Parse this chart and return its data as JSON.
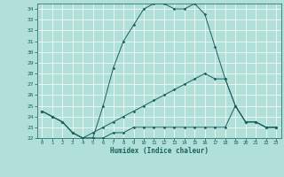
{
  "xlabel": "Humidex (Indice chaleur)",
  "bg_color": "#b0e0d8",
  "line_color": "#1a6060",
  "grid_color": "#ffffff",
  "ylim": [
    22,
    34.5
  ],
  "xlim": [
    -0.5,
    23.5
  ],
  "yticks": [
    22,
    23,
    24,
    25,
    26,
    27,
    28,
    29,
    30,
    31,
    32,
    33,
    34
  ],
  "xticks": [
    0,
    1,
    2,
    3,
    4,
    5,
    6,
    7,
    8,
    9,
    10,
    11,
    12,
    13,
    14,
    15,
    16,
    17,
    18,
    19,
    20,
    21,
    22,
    23
  ],
  "line1_x": [
    0,
    1,
    2,
    3,
    4,
    5,
    6,
    7,
    8,
    9,
    10,
    11,
    12,
    13,
    14,
    15,
    16,
    17,
    18,
    19,
    20,
    21,
    22,
    23
  ],
  "line1_y": [
    24.5,
    24.0,
    23.5,
    22.5,
    22.0,
    22.0,
    25.0,
    28.5,
    31.0,
    32.5,
    34.0,
    34.5,
    34.5,
    34.0,
    34.0,
    34.5,
    33.5,
    30.5,
    27.5,
    25.0,
    23.5,
    23.5,
    23.0,
    23.0
  ],
  "line2_x": [
    0,
    1,
    2,
    3,
    4,
    5,
    6,
    7,
    8,
    9,
    10,
    11,
    12,
    13,
    14,
    15,
    16,
    17,
    18,
    19,
    20,
    21,
    22,
    23
  ],
  "line2_y": [
    24.5,
    24.0,
    23.5,
    22.5,
    22.0,
    22.5,
    23.0,
    23.5,
    24.0,
    24.5,
    25.0,
    25.5,
    26.0,
    26.5,
    27.0,
    27.5,
    28.0,
    27.5,
    27.5,
    25.0,
    23.5,
    23.5,
    23.0,
    23.0
  ],
  "line3_x": [
    0,
    1,
    2,
    3,
    4,
    5,
    6,
    7,
    8,
    9,
    10,
    11,
    12,
    13,
    14,
    15,
    16,
    17,
    18,
    19,
    20,
    21,
    22,
    23
  ],
  "line3_y": [
    24.5,
    24.0,
    23.5,
    22.5,
    22.0,
    22.0,
    22.0,
    22.5,
    22.5,
    23.0,
    23.0,
    23.0,
    23.0,
    23.0,
    23.0,
    23.0,
    23.0,
    23.0,
    23.0,
    25.0,
    23.5,
    23.5,
    23.0,
    23.0
  ]
}
